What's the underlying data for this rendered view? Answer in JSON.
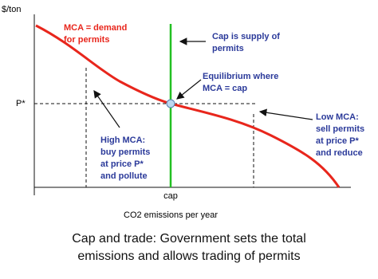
{
  "axes": {
    "y_label": "$/ton",
    "price_label": "P*",
    "cap_label": "cap",
    "x_label": "CO2 emissions per year"
  },
  "annotations": {
    "demand": [
      "MCA = demand",
      "for permits"
    ],
    "supply": [
      "Cap is supply of",
      "permits"
    ],
    "equilibrium": [
      "Equilibrium where",
      "MCA = cap"
    ],
    "high": [
      "High MCA:",
      "buy permits",
      "at price P*",
      "and pollute"
    ],
    "low": [
      "Low MCA:",
      "sell permits",
      "at price P*",
      "and reduce"
    ]
  },
  "caption": [
    "Cap and trade: Government sets the total",
    "emissions and allows trading of permits"
  ]
}
